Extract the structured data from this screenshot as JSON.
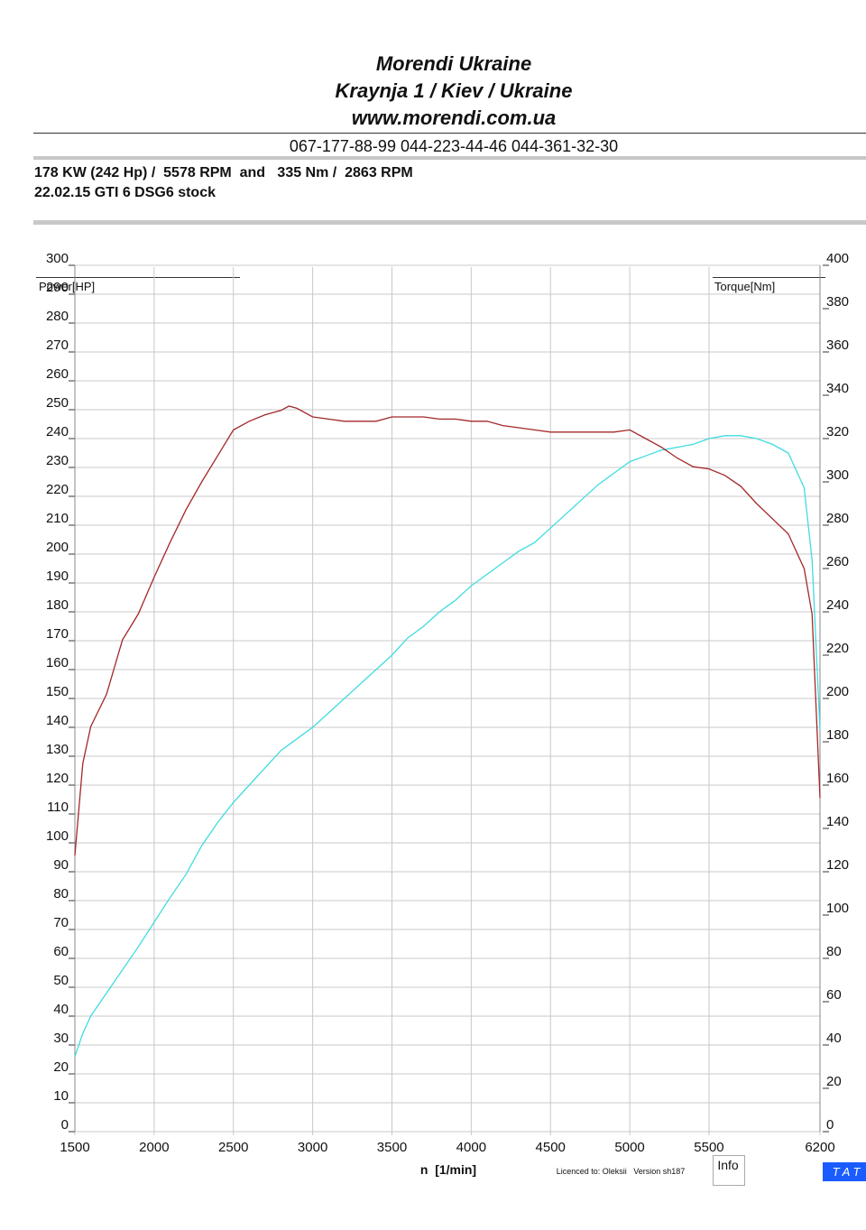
{
  "header": {
    "title": "Morendi Ukraine",
    "address": "Kraynja 1 / Kiev / Ukraine",
    "website": "www.morendi.com.ua",
    "phones": "067-177-88-99 044-223-44-46 044-361-32-30",
    "result": "178 KW (242 Hp) /  5578 RPM  and   335 Nm /  2863 RPM",
    "run": "22.02.15 GTI 6 DSG6 stock"
  },
  "footer": {
    "license": "Licenced to: Oleksii   Version sh187",
    "info": "Info",
    "brand": "T A T"
  },
  "chart_data": {
    "type": "line",
    "x_label": "n  [1/min]",
    "y_label": "Power[HP]",
    "y2_label": "Torque[Nm]",
    "x": [
      1500,
      1550,
      1600,
      1700,
      1800,
      1900,
      2000,
      2100,
      2200,
      2300,
      2400,
      2500,
      2600,
      2700,
      2800,
      2850,
      2900,
      3000,
      3100,
      3200,
      3300,
      3400,
      3500,
      3600,
      3700,
      3800,
      3900,
      4000,
      4100,
      4200,
      4300,
      4400,
      4500,
      4600,
      4700,
      4800,
      4900,
      5000,
      5100,
      5200,
      5300,
      5400,
      5500,
      5600,
      5700,
      5800,
      5900,
      6000,
      6100,
      6150,
      6200
    ],
    "series": [
      {
        "name": "Power[HP]",
        "color": "#3fdce0",
        "values": [
          26,
          34,
          40,
          48,
          56,
          64,
          72.5,
          81,
          89,
          99,
          107,
          114,
          120,
          126,
          132,
          134,
          136,
          140,
          145,
          150,
          155,
          160,
          165,
          171,
          175,
          180,
          184,
          189,
          193,
          197,
          201,
          204,
          209,
          214,
          219,
          224,
          228,
          232,
          234,
          236,
          237,
          238,
          240,
          241,
          241,
          240,
          238,
          235,
          223,
          198,
          139
        ]
      },
      {
        "name": "Torque[Nm]",
        "color": "#a3282a",
        "axis": "y2",
        "values": [
          127.5,
          170,
          187,
          202,
          227,
          239,
          256,
          272,
          287,
          300,
          312,
          324,
          328,
          331,
          333,
          335,
          334,
          330,
          329,
          328,
          328,
          328,
          330,
          330,
          330,
          329,
          329,
          328,
          328,
          326,
          325,
          324,
          323,
          323,
          323,
          323,
          323,
          324,
          320,
          316,
          311,
          307,
          306,
          303,
          298,
          290,
          283,
          276,
          260,
          239,
          154
        ]
      }
    ],
    "xlim": [
      1500,
      6200
    ],
    "xticks": [
      1500,
      2000,
      2500,
      3000,
      3500,
      4000,
      4500,
      5000,
      5500,
      6200
    ],
    "ylim": [
      0,
      300
    ],
    "yticks": [
      0,
      10,
      20,
      30,
      40,
      50,
      60,
      70,
      80,
      90,
      100,
      110,
      120,
      130,
      140,
      150,
      160,
      170,
      180,
      190,
      200,
      210,
      220,
      230,
      240,
      250,
      260,
      270,
      280,
      290,
      300
    ],
    "y2lim": [
      0,
      400
    ],
    "y2ticks": [
      0,
      20,
      40,
      60,
      80,
      100,
      120,
      140,
      160,
      180,
      200,
      220,
      240,
      260,
      280,
      300,
      320,
      340,
      360,
      380,
      400
    ],
    "grid": true
  }
}
